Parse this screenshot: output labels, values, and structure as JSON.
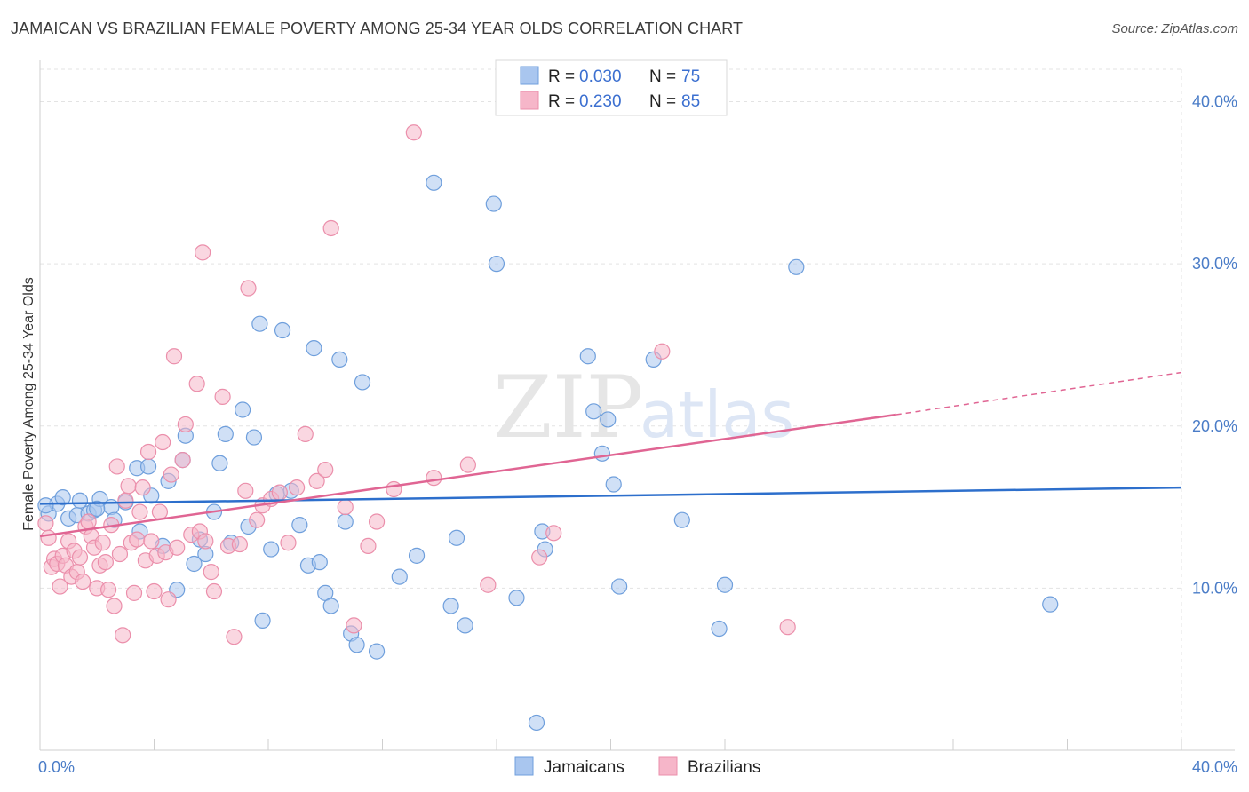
{
  "title": "JAMAICAN VS BRAZILIAN FEMALE POVERTY AMONG 25-34 YEAR OLDS CORRELATION CHART",
  "source": "Source: ZipAtlas.com",
  "watermark": {
    "zip": "ZIP",
    "atlas": "atlas"
  },
  "colors": {
    "jamaicans_fill": "#a9c6ef",
    "jamaicans_stroke": "#6f9fdc",
    "jamaicans_line": "#2d6fcc",
    "brazilians_fill": "#f6b6c9",
    "brazilians_stroke": "#eb8fab",
    "brazilians_line": "#e06593",
    "tick_color": "#4a7cc7",
    "grid": "#e3e3e3"
  },
  "legend": {
    "rows": [
      {
        "r_label": "R =",
        "r_value": "0.030",
        "n_label": "N =",
        "n_value": "75"
      },
      {
        "r_label": "R =",
        "r_value": "0.230",
        "n_label": "N =",
        "n_value": "85"
      }
    ]
  },
  "bottom_legend": [
    "Jamaicans",
    "Brazilians"
  ],
  "chart_data": {
    "type": "scatter",
    "title": "JAMAICAN VS BRAZILIAN FEMALE POVERTY AMONG 25-34 YEAR OLDS CORRELATION CHART",
    "ylabel": "Female Poverty Among 25-34 Year Olds",
    "xlabel": "",
    "xlim": [
      0,
      40
    ],
    "ylim": [
      0,
      42
    ],
    "x_tick_labels": [
      "0.0%",
      "40.0%"
    ],
    "y_ticks": [
      10,
      20,
      30,
      40
    ],
    "y_tick_labels": [
      "10.0%",
      "20.0%",
      "30.0%",
      "40.0%"
    ],
    "grid": true,
    "legend_position": "top-center",
    "series": [
      {
        "name": "Jamaicans",
        "R": 0.03,
        "N": 75,
        "trend": {
          "x": [
            0,
            40
          ],
          "y": [
            15.2,
            16.2
          ]
        },
        "points": [
          [
            0.3,
            14.6
          ],
          [
            0.6,
            15.2
          ],
          [
            0.8,
            15.6
          ],
          [
            1.0,
            14.3
          ],
          [
            1.3,
            14.5
          ],
          [
            1.4,
            15.4
          ],
          [
            1.7,
            14.6
          ],
          [
            1.9,
            14.8
          ],
          [
            2.1,
            15.5
          ],
          [
            2.5,
            15.0
          ],
          [
            2.6,
            14.2
          ],
          [
            3.0,
            15.3
          ],
          [
            3.4,
            17.4
          ],
          [
            3.5,
            13.5
          ],
          [
            3.8,
            17.5
          ],
          [
            3.9,
            15.7
          ],
          [
            4.3,
            12.6
          ],
          [
            4.5,
            16.6
          ],
          [
            4.8,
            9.9
          ],
          [
            5.0,
            17.9
          ],
          [
            5.1,
            19.4
          ],
          [
            5.4,
            11.5
          ],
          [
            5.6,
            13.0
          ],
          [
            5.8,
            12.1
          ],
          [
            6.1,
            14.7
          ],
          [
            6.3,
            17.7
          ],
          [
            6.5,
            19.5
          ],
          [
            6.7,
            12.8
          ],
          [
            7.1,
            21.0
          ],
          [
            7.3,
            13.8
          ],
          [
            7.5,
            19.3
          ],
          [
            7.7,
            26.3
          ],
          [
            7.8,
            8.0
          ],
          [
            8.1,
            12.4
          ],
          [
            8.3,
            15.8
          ],
          [
            8.5,
            25.9
          ],
          [
            8.8,
            16.0
          ],
          [
            9.1,
            13.9
          ],
          [
            9.4,
            11.4
          ],
          [
            9.6,
            24.8
          ],
          [
            9.8,
            11.6
          ],
          [
            10.0,
            9.7
          ],
          [
            10.2,
            8.9
          ],
          [
            10.5,
            24.1
          ],
          [
            10.7,
            14.1
          ],
          [
            10.9,
            7.2
          ],
          [
            11.1,
            6.5
          ],
          [
            11.3,
            22.7
          ],
          [
            11.8,
            6.1
          ],
          [
            12.6,
            10.7
          ],
          [
            13.2,
            12.0
          ],
          [
            13.8,
            35.0
          ],
          [
            14.4,
            8.9
          ],
          [
            14.6,
            13.1
          ],
          [
            14.9,
            7.7
          ],
          [
            15.9,
            33.7
          ],
          [
            16.0,
            30.0
          ],
          [
            16.7,
            9.4
          ],
          [
            17.4,
            1.7
          ],
          [
            17.6,
            13.5
          ],
          [
            17.7,
            12.4
          ],
          [
            19.2,
            24.3
          ],
          [
            19.4,
            20.9
          ],
          [
            19.7,
            18.3
          ],
          [
            19.9,
            20.4
          ],
          [
            20.1,
            16.4
          ],
          [
            20.3,
            10.1
          ],
          [
            21.5,
            24.1
          ],
          [
            22.5,
            14.2
          ],
          [
            23.8,
            7.5
          ],
          [
            24.0,
            10.2
          ],
          [
            26.5,
            29.8
          ],
          [
            35.4,
            9.0
          ],
          [
            0.2,
            15.1
          ],
          [
            2.0,
            14.9
          ]
        ]
      },
      {
        "name": "Brazilians",
        "R": 0.23,
        "N": 85,
        "trend": {
          "x": [
            0,
            30
          ],
          "y": [
            13.2,
            20.7
          ],
          "dashed_to": {
            "x": 40,
            "y": 23.3
          }
        },
        "points": [
          [
            0.2,
            14.0
          ],
          [
            0.3,
            13.1
          ],
          [
            0.4,
            11.3
          ],
          [
            0.5,
            11.8
          ],
          [
            0.6,
            11.5
          ],
          [
            0.7,
            10.1
          ],
          [
            0.8,
            12.0
          ],
          [
            0.9,
            11.4
          ],
          [
            1.0,
            12.9
          ],
          [
            1.1,
            10.7
          ],
          [
            1.2,
            12.3
          ],
          [
            1.3,
            11.0
          ],
          [
            1.4,
            11.9
          ],
          [
            1.5,
            10.4
          ],
          [
            1.6,
            13.8
          ],
          [
            1.7,
            14.1
          ],
          [
            1.8,
            13.2
          ],
          [
            1.9,
            12.5
          ],
          [
            2.0,
            10.0
          ],
          [
            2.1,
            11.4
          ],
          [
            2.2,
            12.8
          ],
          [
            2.3,
            11.6
          ],
          [
            2.4,
            9.9
          ],
          [
            2.5,
            13.9
          ],
          [
            2.6,
            8.9
          ],
          [
            2.7,
            17.5
          ],
          [
            2.8,
            12.1
          ],
          [
            2.9,
            7.1
          ],
          [
            3.0,
            15.4
          ],
          [
            3.1,
            16.3
          ],
          [
            3.2,
            12.8
          ],
          [
            3.3,
            9.7
          ],
          [
            3.4,
            13.0
          ],
          [
            3.5,
            14.7
          ],
          [
            3.6,
            16.2
          ],
          [
            3.7,
            11.7
          ],
          [
            3.8,
            18.4
          ],
          [
            3.9,
            12.9
          ],
          [
            4.0,
            9.8
          ],
          [
            4.1,
            12.0
          ],
          [
            4.2,
            14.7
          ],
          [
            4.3,
            19.0
          ],
          [
            4.4,
            12.2
          ],
          [
            4.5,
            9.3
          ],
          [
            4.6,
            17.0
          ],
          [
            4.7,
            24.3
          ],
          [
            4.8,
            12.5
          ],
          [
            5.0,
            17.9
          ],
          [
            5.1,
            20.1
          ],
          [
            5.3,
            13.3
          ],
          [
            5.5,
            22.6
          ],
          [
            5.6,
            13.5
          ],
          [
            5.7,
            30.7
          ],
          [
            5.8,
            12.9
          ],
          [
            6.0,
            11.0
          ],
          [
            6.1,
            9.8
          ],
          [
            6.4,
            21.8
          ],
          [
            6.6,
            12.6
          ],
          [
            6.8,
            7.0
          ],
          [
            7.0,
            12.7
          ],
          [
            7.2,
            16.0
          ],
          [
            7.3,
            28.5
          ],
          [
            7.6,
            14.2
          ],
          [
            7.8,
            15.1
          ],
          [
            8.1,
            15.5
          ],
          [
            8.4,
            15.9
          ],
          [
            8.7,
            12.8
          ],
          [
            9.0,
            16.2
          ],
          [
            9.3,
            19.5
          ],
          [
            9.7,
            16.6
          ],
          [
            10.0,
            17.3
          ],
          [
            10.2,
            32.2
          ],
          [
            10.7,
            15.0
          ],
          [
            11.0,
            7.7
          ],
          [
            11.5,
            12.6
          ],
          [
            11.8,
            14.1
          ],
          [
            12.4,
            16.1
          ],
          [
            13.1,
            38.1
          ],
          [
            13.8,
            16.8
          ],
          [
            15.0,
            17.6
          ],
          [
            15.7,
            10.2
          ],
          [
            17.5,
            11.9
          ],
          [
            18.0,
            13.4
          ],
          [
            21.8,
            24.6
          ],
          [
            26.2,
            7.6
          ]
        ]
      }
    ]
  }
}
